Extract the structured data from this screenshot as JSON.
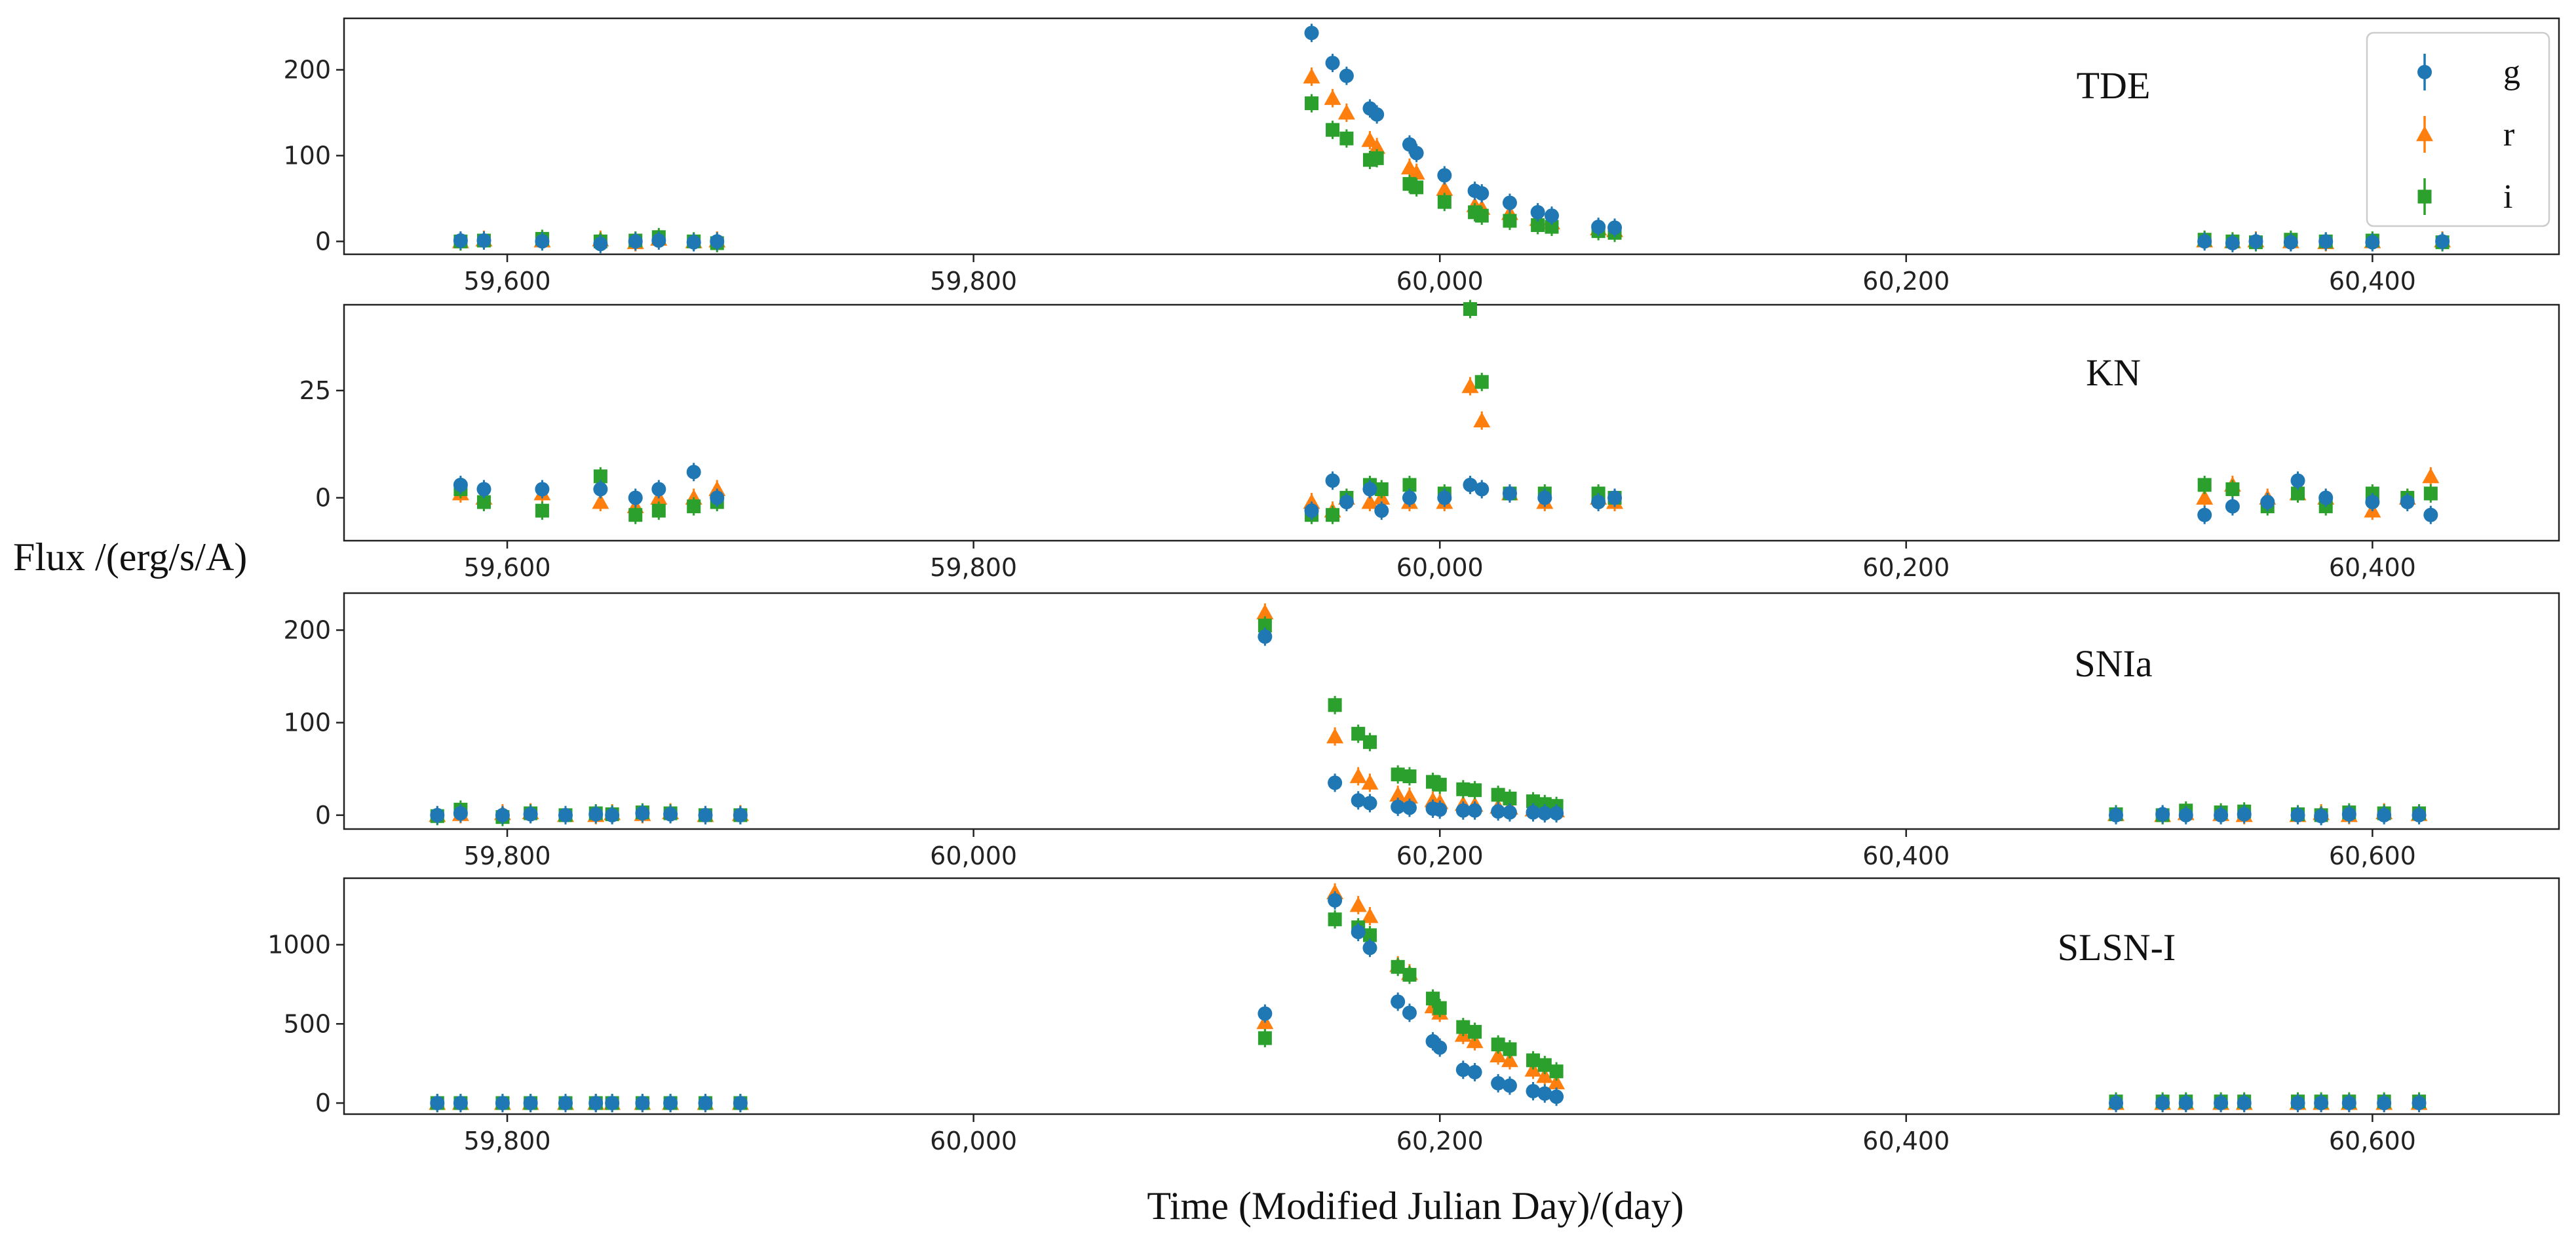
{
  "chart_data": {
    "type": "scatter",
    "xlabel": "Time (Modified Julian Day)/(day)",
    "ylabel": "Flux /(erg/s/A)",
    "bands": [
      {
        "name": "g",
        "marker": "circle",
        "color": "#1f77b4"
      },
      {
        "name": "r",
        "marker": "triangle",
        "color": "#ff7f0e"
      },
      {
        "name": "i",
        "marker": "square",
        "color": "#2ca02c"
      }
    ],
    "legend_location": "top-right of first panel",
    "panels": [
      {
        "label": "TDE",
        "xlim": [
          59530,
          60480
        ],
        "ylim": [
          -15,
          260
        ],
        "xticks": [
          59600,
          59800,
          60000,
          60200,
          60400
        ],
        "xtick_labels": [
          "59,600",
          "59,800",
          "60,000",
          "60,200",
          "60,400"
        ],
        "yticks": [
          0,
          100,
          200
        ],
        "ytick_labels": [
          "0",
          "100",
          "200"
        ],
        "series": [
          {
            "name": "g",
            "x": [
              59580,
              59590,
              59615,
              59640,
              59655,
              59665,
              59680,
              59690,
              59945,
              59954,
              59960,
              59970,
              59973,
              59987,
              59990,
              60002,
              60015,
              60018,
              60030,
              60042,
              60048,
              60068,
              60075,
              60328,
              60340,
              60350,
              60365,
              60380,
              60400,
              60430
            ],
            "y": [
              1,
              1,
              0,
              -3,
              0,
              1,
              -1,
              0,
              243,
              208,
              193,
              155,
              148,
              113,
              103,
              77,
              59,
              56,
              45,
              34,
              30,
              17,
              16,
              0,
              -2,
              0,
              -1,
              0,
              -1,
              0
            ]
          },
          {
            "name": "r",
            "x": [
              59580,
              59590,
              59615,
              59640,
              59655,
              59665,
              59680,
              59690,
              59945,
              59954,
              59960,
              59970,
              59973,
              59987,
              59990,
              60002,
              60015,
              60018,
              60030,
              60042,
              60048,
              60068,
              60075,
              60328,
              60340,
              60350,
              60365,
              60380,
              60400,
              60430
            ],
            "y": [
              0,
              2,
              1,
              2,
              -1,
              3,
              0,
              1,
              192,
              167,
              150,
              118,
              110,
              86,
              80,
              61,
              42,
              39,
              33,
              26,
              22,
              15,
              13,
              1,
              0,
              1,
              0,
              -1,
              0,
              1
            ]
          },
          {
            "name": "i",
            "x": [
              59580,
              59590,
              59615,
              59640,
              59655,
              59665,
              59680,
              59690,
              59945,
              59954,
              59960,
              59970,
              59973,
              59987,
              59990,
              60002,
              60015,
              60018,
              60030,
              60042,
              60048,
              60068,
              60075,
              60328,
              60340,
              60350,
              60365,
              60380,
              60400,
              60430
            ],
            "y": [
              0,
              1,
              3,
              0,
              1,
              5,
              0,
              -2,
              161,
              130,
              120,
              95,
              97,
              67,
              63,
              46,
              34,
              30,
              24,
              19,
              17,
              12,
              10,
              2,
              0,
              -1,
              2,
              0,
              1,
              -1
            ]
          }
        ]
      },
      {
        "label": "KN",
        "xlim": [
          59530,
          60480
        ],
        "ylim": [
          -10,
          45
        ],
        "xticks": [
          59600,
          59800,
          60000,
          60200,
          60400
        ],
        "xtick_labels": [
          "59,600",
          "59,800",
          "60,000",
          "60,200",
          "60,400"
        ],
        "yticks": [
          0,
          25
        ],
        "ytick_labels": [
          "0",
          "25"
        ],
        "series": [
          {
            "name": "g",
            "x": [
              59580,
              59590,
              59615,
              59640,
              59655,
              59665,
              59680,
              59690,
              59945,
              59954,
              59960,
              59970,
              59975,
              59987,
              60002,
              60013,
              60018,
              60030,
              60045,
              60068,
              60075,
              60328,
              60340,
              60355,
              60368,
              60380,
              60400,
              60415,
              60425
            ],
            "y": [
              3,
              2,
              2,
              2,
              0,
              2,
              6,
              0,
              -3,
              4,
              -1,
              2,
              -3,
              0,
              0,
              3,
              2,
              1,
              0,
              -1,
              0,
              -4,
              -2,
              -1,
              4,
              0,
              -1,
              -1,
              -4
            ]
          },
          {
            "name": "r",
            "x": [
              59580,
              59590,
              59615,
              59640,
              59655,
              59665,
              59680,
              59690,
              59945,
              59954,
              59960,
              59970,
              59975,
              59987,
              60002,
              60013,
              60018,
              60030,
              60045,
              60068,
              60075,
              60328,
              60340,
              60355,
              60368,
              60380,
              60400,
              60415,
              60425
            ],
            "y": [
              1,
              0,
              1,
              -1,
              -2,
              0,
              0,
              2,
              -1,
              -3,
              0,
              -1,
              0,
              -1,
              -1,
              26,
              18,
              1,
              -1,
              0,
              -1,
              0,
              3,
              0,
              1,
              0,
              -3,
              0,
              5
            ]
          },
          {
            "name": "i",
            "x": [
              59580,
              59590,
              59615,
              59640,
              59655,
              59665,
              59680,
              59690,
              59945,
              59954,
              59960,
              59970,
              59975,
              59987,
              60002,
              60013,
              60018,
              60030,
              60045,
              60068,
              60075,
              60328,
              60340,
              60355,
              60368,
              60380,
              60400,
              60415,
              60425
            ],
            "y": [
              2,
              -1,
              -3,
              5,
              -4,
              -3,
              -2,
              -1,
              -4,
              -4,
              0,
              3,
              2,
              3,
              1,
              44,
              27,
              1,
              1,
              1,
              0,
              3,
              2,
              -2,
              1,
              -2,
              1,
              0,
              1
            ]
          }
        ]
      },
      {
        "label": "SNIa",
        "xlim": [
          59730,
          60680
        ],
        "ylim": [
          -15,
          240
        ],
        "xticks": [
          59800,
          60000,
          60200,
          60400,
          60600
        ],
        "xtick_labels": [
          "59,800",
          "60,000",
          "60,200",
          "60,400",
          "60,600"
        ],
        "yticks": [
          0,
          100,
          200
        ],
        "ytick_labels": [
          "0",
          "100",
          "200"
        ],
        "series": [
          {
            "name": "g",
            "x": [
              59770,
              59780,
              59798,
              59810,
              59825,
              59838,
              59845,
              59858,
              59870,
              59885,
              59900,
              60125,
              60155,
              60165,
              60170,
              60182,
              60187,
              60197,
              60200,
              60210,
              60215,
              60225,
              60230,
              60240,
              60245,
              60250,
              60490,
              60510,
              60520,
              60535,
              60545,
              60568,
              60578,
              60590,
              60605,
              60620
            ],
            "y": [
              0,
              2,
              0,
              1,
              0,
              1,
              0,
              2,
              1,
              0,
              0,
              193,
              35,
              16,
              13,
              9,
              8,
              7,
              6,
              5,
              5,
              4,
              3,
              3,
              2,
              2,
              0,
              1,
              0,
              0,
              1,
              0,
              -1,
              1,
              0,
              0
            ]
          },
          {
            "name": "r",
            "x": [
              59770,
              59780,
              59798,
              59810,
              59825,
              59838,
              59845,
              59858,
              59870,
              59885,
              59900,
              60125,
              60155,
              60165,
              60170,
              60182,
              60187,
              60197,
              60200,
              60210,
              60215,
              60225,
              60230,
              60240,
              60245,
              60250,
              60490,
              60510,
              60520,
              60535,
              60545,
              60568,
              60578,
              60590,
              60605,
              60620
            ],
            "y": [
              0,
              1,
              2,
              3,
              0,
              0,
              2,
              1,
              3,
              0,
              1,
              219,
              85,
              42,
              35,
              22,
              20,
              16,
              14,
              12,
              11,
              9,
              8,
              6,
              6,
              5,
              1,
              0,
              2,
              1,
              0,
              0,
              2,
              0,
              3,
              1
            ]
          },
          {
            "name": "i",
            "x": [
              59770,
              59780,
              59798,
              59810,
              59825,
              59838,
              59845,
              59858,
              59870,
              59885,
              59900,
              60125,
              60155,
              60165,
              60170,
              60182,
              60187,
              60197,
              60200,
              60210,
              60215,
              60225,
              60230,
              60240,
              60245,
              60250,
              60490,
              60510,
              60520,
              60535,
              60545,
              60568,
              60578,
              60590,
              60605,
              60620
            ],
            "y": [
              -1,
              6,
              -2,
              2,
              0,
              2,
              1,
              3,
              2,
              0,
              0,
              205,
              119,
              88,
              79,
              44,
              42,
              36,
              33,
              28,
              27,
              22,
              18,
              15,
              12,
              10,
              1,
              0,
              5,
              3,
              4,
              1,
              0,
              3,
              2,
              2
            ]
          }
        ]
      },
      {
        "label": "SLSN-I",
        "xlim": [
          59730,
          60680
        ],
        "ylim": [
          -70,
          1420
        ],
        "xticks": [
          59800,
          60000,
          60200,
          60400,
          60600
        ],
        "xtick_labels": [
          "59,800",
          "60,000",
          "60,200",
          "60,400",
          "60,600"
        ],
        "yticks": [
          0,
          500,
          1000
        ],
        "ytick_labels": [
          "0",
          "500",
          "1000"
        ],
        "series": [
          {
            "name": "g",
            "x": [
              59770,
              59780,
              59798,
              59810,
              59825,
              59838,
              59845,
              59858,
              59870,
              59885,
              59900,
              60125,
              60155,
              60165,
              60170,
              60182,
              60187,
              60197,
              60200,
              60210,
              60215,
              60225,
              60230,
              60240,
              60245,
              60250,
              60490,
              60510,
              60520,
              60535,
              60545,
              60568,
              60578,
              60590,
              60605,
              60620
            ],
            "y": [
              0,
              0,
              0,
              0,
              0,
              0,
              0,
              0,
              0,
              0,
              0,
              565,
              1280,
              1080,
              980,
              640,
              570,
              390,
              350,
              210,
              195,
              125,
              110,
              75,
              60,
              40,
              0,
              0,
              0,
              0,
              0,
              0,
              0,
              0,
              0,
              0
            ]
          },
          {
            "name": "r",
            "x": [
              59770,
              59780,
              59798,
              59810,
              59825,
              59838,
              59845,
              59858,
              59870,
              59885,
              59900,
              60125,
              60155,
              60165,
              60170,
              60182,
              60187,
              60197,
              60200,
              60210,
              60215,
              60225,
              60230,
              60240,
              60245,
              60250,
              60490,
              60510,
              60520,
              60535,
              60545,
              60568,
              60578,
              60590,
              60605,
              60620
            ],
            "y": [
              0,
              0,
              0,
              0,
              0,
              0,
              0,
              0,
              0,
              0,
              0,
              510,
              1330,
              1250,
              1180,
              870,
              820,
              610,
              570,
              430,
              390,
              300,
              270,
              210,
              170,
              130,
              0,
              0,
              0,
              0,
              0,
              0,
              0,
              0,
              0,
              0
            ]
          },
          {
            "name": "i",
            "x": [
              59770,
              59780,
              59798,
              59810,
              59825,
              59838,
              59845,
              59858,
              59870,
              59885,
              59900,
              60125,
              60155,
              60165,
              60170,
              60182,
              60187,
              60197,
              60200,
              60210,
              60215,
              60225,
              60230,
              60240,
              60245,
              60250,
              60490,
              60510,
              60520,
              60535,
              60545,
              60568,
              60578,
              60590,
              60605,
              60620
            ],
            "y": [
              0,
              0,
              0,
              0,
              0,
              0,
              0,
              0,
              0,
              0,
              0,
              410,
              1160,
              1110,
              1060,
              860,
              810,
              660,
              600,
              480,
              450,
              370,
              340,
              270,
              240,
              200,
              10,
              10,
              10,
              10,
              10,
              10,
              10,
              10,
              10,
              10
            ]
          }
        ]
      }
    ]
  }
}
